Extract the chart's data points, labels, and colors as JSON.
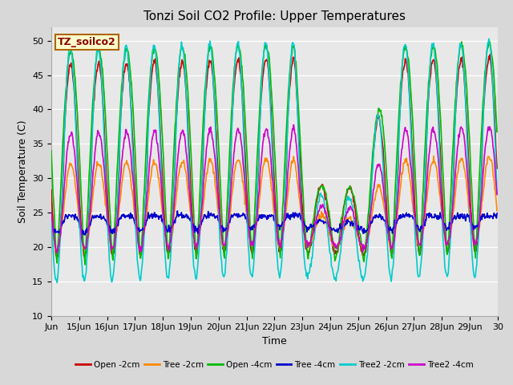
{
  "title": "Tonzi Soil CO2 Profile: Upper Temperatures",
  "xlabel": "Time",
  "ylabel": "Soil Temperature (C)",
  "ylim": [
    10,
    52
  ],
  "yticks": [
    10,
    15,
    20,
    25,
    30,
    35,
    40,
    45,
    50
  ],
  "background_color": "#d8d8d8",
  "plot_bg_color": "#e8e8e8",
  "grid_color": "#ffffff",
  "label_box_text": "TZ_soilco2",
  "label_box_facecolor": "#ffffcc",
  "label_box_edgecolor": "#aa6600",
  "series": [
    {
      "label": "Open -2cm",
      "color": "#cc0000",
      "lw": 1.2
    },
    {
      "label": "Tree -2cm",
      "color": "#ff8800",
      "lw": 1.2
    },
    {
      "label": "Open -4cm",
      "color": "#00bb00",
      "lw": 1.2
    },
    {
      "label": "Tree -4cm",
      "color": "#0000cc",
      "lw": 1.2
    },
    {
      "label": "Tree2 -2cm",
      "color": "#00cccc",
      "lw": 1.2
    },
    {
      "label": "Tree2 -4cm",
      "color": "#cc00cc",
      "lw": 1.2
    }
  ],
  "x_tick_labels": [
    "Jun",
    "15Jun",
    "16Jun",
    "17Jun",
    "18Jun",
    "19Jun",
    "20Jun",
    "21Jun",
    "22Jun",
    "23Jun",
    "24Jun",
    "25Jun",
    "26Jun",
    "27Jun",
    "28Jun",
    "29Jun",
    "30"
  ],
  "days": 16,
  "title_fontsize": 11,
  "axis_label_fontsize": 9,
  "tick_fontsize": 8
}
